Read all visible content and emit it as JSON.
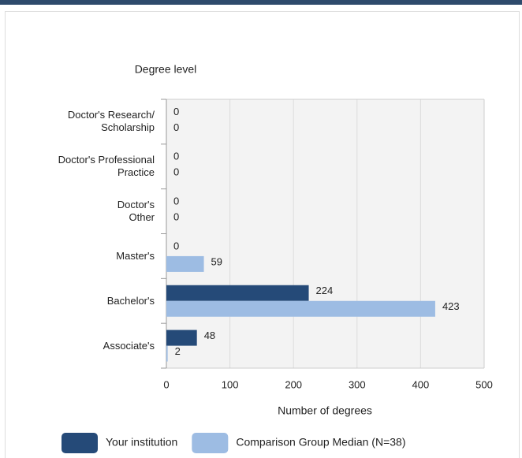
{
  "chart_data": {
    "type": "hbar",
    "y_axis_title": "Degree level",
    "x_axis_title": "Number of degrees",
    "categories": [
      "Doctor's Research/\nScholarship",
      "Doctor's Professional\nPractice",
      "Doctor's\nOther",
      "Master's",
      "Bachelor's",
      "Associate's"
    ],
    "series": [
      {
        "name": "Your institution",
        "color": "#254a78",
        "values": [
          0,
          0,
          0,
          0,
          224,
          48
        ]
      },
      {
        "name": "Comparison Group Median (N=38)",
        "color": "#9dbce3",
        "values": [
          0,
          0,
          0,
          59,
          423,
          2
        ]
      }
    ],
    "xlim": [
      0,
      500
    ],
    "xticks": [
      0,
      100,
      200,
      300,
      400,
      500
    ],
    "grid": true
  }
}
